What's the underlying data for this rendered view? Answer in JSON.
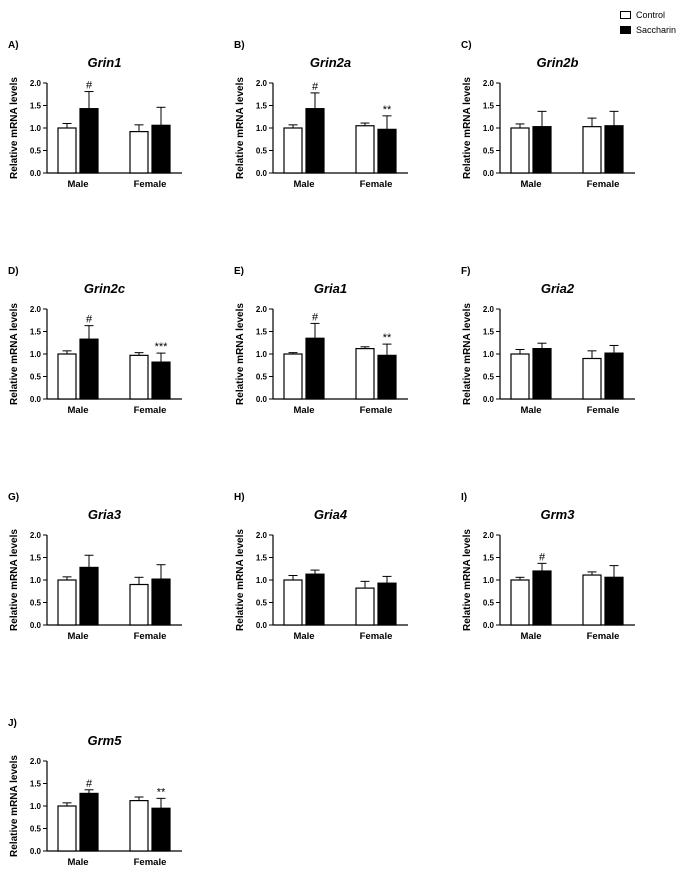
{
  "legend": {
    "items": [
      {
        "label": "Control",
        "color": "#ffffff"
      },
      {
        "label": "Saccharin",
        "color": "#000000"
      }
    ]
  },
  "chart_data": [
    {
      "type": "bar",
      "panel": "A)",
      "title": "Grin1",
      "ylabel": "Relative mRNA levels",
      "ylim": [
        0,
        2
      ],
      "yticks": [
        "0.0",
        "0.5",
        "1.0",
        "1.5",
        "2.0"
      ],
      "categories": [
        "Male",
        "Female"
      ],
      "series": [
        {
          "name": "Control",
          "color": "#ffffff",
          "values": [
            1.0,
            0.92
          ],
          "errors": [
            0.1,
            0.15
          ],
          "sig": [
            "",
            ""
          ]
        },
        {
          "name": "Saccharin",
          "color": "#000000",
          "values": [
            1.43,
            1.06
          ],
          "errors": [
            0.38,
            0.4
          ],
          "sig": [
            "#",
            ""
          ]
        }
      ]
    },
    {
      "type": "bar",
      "panel": "B)",
      "title": "Grin2a",
      "ylabel": "Relative mRNA levels",
      "ylim": [
        0,
        2
      ],
      "yticks": [
        "0.0",
        "0.5",
        "1.0",
        "1.5",
        "2.0"
      ],
      "categories": [
        "Male",
        "Female"
      ],
      "series": [
        {
          "name": "Control",
          "color": "#ffffff",
          "values": [
            1.0,
            1.05
          ],
          "errors": [
            0.07,
            0.06
          ],
          "sig": [
            "",
            ""
          ]
        },
        {
          "name": "Saccharin",
          "color": "#000000",
          "values": [
            1.43,
            0.97
          ],
          "errors": [
            0.35,
            0.3
          ],
          "sig": [
            "#",
            "**"
          ]
        }
      ]
    },
    {
      "type": "bar",
      "panel": "C)",
      "title": "Grin2b",
      "ylabel": "Relative mRNA levels",
      "ylim": [
        0,
        2
      ],
      "yticks": [
        "0.0",
        "0.5",
        "1.0",
        "1.5",
        "2.0"
      ],
      "categories": [
        "Male",
        "Female"
      ],
      "series": [
        {
          "name": "Control",
          "color": "#ffffff",
          "values": [
            1.0,
            1.03
          ],
          "errors": [
            0.09,
            0.19
          ],
          "sig": [
            "",
            ""
          ]
        },
        {
          "name": "Saccharin",
          "color": "#000000",
          "values": [
            1.03,
            1.05
          ],
          "errors": [
            0.34,
            0.32
          ],
          "sig": [
            "",
            ""
          ]
        }
      ]
    },
    {
      "type": "bar",
      "panel": "D)",
      "title": "Grin2c",
      "ylabel": "Relative mRNA levels",
      "ylim": [
        0,
        2
      ],
      "yticks": [
        "0.0",
        "0.5",
        "1.0",
        "1.5",
        "2.0"
      ],
      "categories": [
        "Male",
        "Female"
      ],
      "series": [
        {
          "name": "Control",
          "color": "#ffffff",
          "values": [
            1.0,
            0.97
          ],
          "errors": [
            0.07,
            0.06
          ],
          "sig": [
            "",
            ""
          ]
        },
        {
          "name": "Saccharin",
          "color": "#000000",
          "values": [
            1.33,
            0.82
          ],
          "errors": [
            0.3,
            0.2
          ],
          "sig": [
            "#",
            "***"
          ]
        }
      ]
    },
    {
      "type": "bar",
      "panel": "E)",
      "title": "Gria1",
      "ylabel": "Relative mRNA levels",
      "ylim": [
        0,
        2
      ],
      "yticks": [
        "0.0",
        "0.5",
        "1.0",
        "1.5",
        "2.0"
      ],
      "categories": [
        "Male",
        "Female"
      ],
      "series": [
        {
          "name": "Control",
          "color": "#ffffff",
          "values": [
            1.0,
            1.12
          ],
          "errors": [
            0.03,
            0.04
          ],
          "sig": [
            "",
            ""
          ]
        },
        {
          "name": "Saccharin",
          "color": "#000000",
          "values": [
            1.35,
            0.97
          ],
          "errors": [
            0.33,
            0.25
          ],
          "sig": [
            "#",
            "**"
          ]
        }
      ]
    },
    {
      "type": "bar",
      "panel": "F)",
      "title": "Gria2",
      "ylabel": "Relative mRNA levels",
      "ylim": [
        0,
        2
      ],
      "yticks": [
        "0.0",
        "0.5",
        "1.0",
        "1.5",
        "2.0"
      ],
      "categories": [
        "Male",
        "Female"
      ],
      "series": [
        {
          "name": "Control",
          "color": "#ffffff",
          "values": [
            1.0,
            0.9
          ],
          "errors": [
            0.1,
            0.17
          ],
          "sig": [
            "",
            ""
          ]
        },
        {
          "name": "Saccharin",
          "color": "#000000",
          "values": [
            1.12,
            1.02
          ],
          "errors": [
            0.12,
            0.17
          ],
          "sig": [
            "",
            ""
          ]
        }
      ]
    },
    {
      "type": "bar",
      "panel": "G)",
      "title": "Gria3",
      "ylabel": "Relative mRNA levels",
      "ylim": [
        0,
        2
      ],
      "yticks": [
        "0.0",
        "0.5",
        "1.0",
        "1.5",
        "2.0"
      ],
      "categories": [
        "Male",
        "Female"
      ],
      "series": [
        {
          "name": "Control",
          "color": "#ffffff",
          "values": [
            1.0,
            0.9
          ],
          "errors": [
            0.07,
            0.16
          ],
          "sig": [
            "",
            ""
          ]
        },
        {
          "name": "Saccharin",
          "color": "#000000",
          "values": [
            1.28,
            1.02
          ],
          "errors": [
            0.27,
            0.32
          ],
          "sig": [
            "",
            ""
          ]
        }
      ]
    },
    {
      "type": "bar",
      "panel": "H)",
      "title": "Gria4",
      "ylabel": "Relative mRNA levels",
      "ylim": [
        0,
        2
      ],
      "yticks": [
        "0.0",
        "0.5",
        "1.0",
        "1.5",
        "2.0"
      ],
      "categories": [
        "Male",
        "Female"
      ],
      "series": [
        {
          "name": "Control",
          "color": "#ffffff",
          "values": [
            1.0,
            0.82
          ],
          "errors": [
            0.1,
            0.15
          ],
          "sig": [
            "",
            ""
          ]
        },
        {
          "name": "Saccharin",
          "color": "#000000",
          "values": [
            1.13,
            0.93
          ],
          "errors": [
            0.09,
            0.15
          ],
          "sig": [
            "",
            ""
          ]
        }
      ]
    },
    {
      "type": "bar",
      "panel": "I)",
      "title": "Grm3",
      "ylabel": "Relative mRNA levels",
      "ylim": [
        0,
        2
      ],
      "yticks": [
        "0.0",
        "0.5",
        "1.0",
        "1.5",
        "2.0"
      ],
      "categories": [
        "Male",
        "Female"
      ],
      "series": [
        {
          "name": "Control",
          "color": "#ffffff",
          "values": [
            1.0,
            1.11
          ],
          "errors": [
            0.06,
            0.07
          ],
          "sig": [
            "",
            ""
          ]
        },
        {
          "name": "Saccharin",
          "color": "#000000",
          "values": [
            1.2,
            1.06
          ],
          "errors": [
            0.17,
            0.26
          ],
          "sig": [
            "#",
            ""
          ]
        }
      ]
    },
    {
      "type": "bar",
      "panel": "J)",
      "title": "Grm5",
      "ylabel": "Relative mRNA levels",
      "ylim": [
        0,
        2
      ],
      "yticks": [
        "0.0",
        "0.5",
        "1.0",
        "1.5",
        "2.0"
      ],
      "categories": [
        "Male",
        "Female"
      ],
      "series": [
        {
          "name": "Control",
          "color": "#ffffff",
          "values": [
            1.0,
            1.12
          ],
          "errors": [
            0.07,
            0.08
          ],
          "sig": [
            "",
            ""
          ]
        },
        {
          "name": "Saccharin",
          "color": "#000000",
          "values": [
            1.28,
            0.95
          ],
          "errors": [
            0.08,
            0.22
          ],
          "sig": [
            "#",
            "**"
          ]
        }
      ]
    }
  ]
}
